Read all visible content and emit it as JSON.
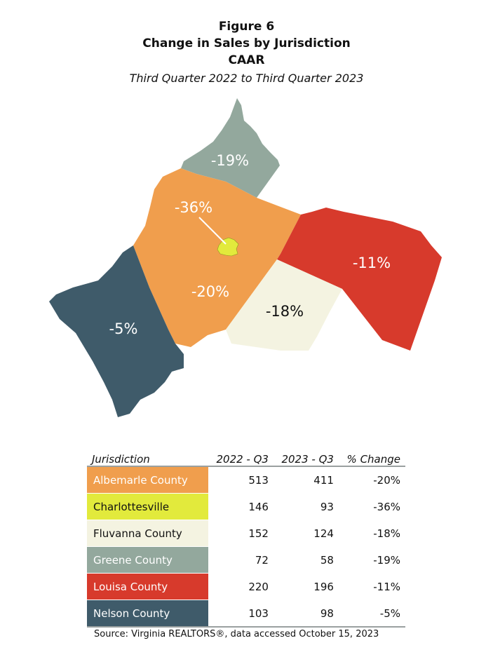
{
  "header": {
    "figure": "Figure 6",
    "title": "Change in Sales by Jurisdiction",
    "org": "CAAR",
    "subtitle": "Third Quarter 2022 to Third Quarter 2023"
  },
  "colors": {
    "albemarle": "#F09E4D",
    "charlottesville": "#E2EA3C",
    "fluvanna": "#F4F3E1",
    "greene": "#93A89D",
    "louisa": "#D73A2C",
    "nelson": "#3F5B6A"
  },
  "map": {
    "labels": {
      "greene": "-19%",
      "charlottesville": "-36%",
      "albemarle": "-20%",
      "louisa": "-11%",
      "fluvanna": "-18%",
      "nelson": "-5%"
    }
  },
  "table": {
    "headers": [
      "Jurisdiction",
      "2022 - Q3",
      "2023 - Q3",
      "% Change"
    ],
    "rows": [
      {
        "name": "Albemarle County",
        "q3_2022": "513",
        "q3_2023": "411",
        "change": "-20%",
        "color": "#F09E4D",
        "text_color": "#ffffff"
      },
      {
        "name": "Charlottesville",
        "q3_2022": "146",
        "q3_2023": "93",
        "change": "-36%",
        "color": "#E2EA3C",
        "text_color": "#111111"
      },
      {
        "name": "Fluvanna County",
        "q3_2022": "152",
        "q3_2023": "124",
        "change": "-18%",
        "color": "#F4F3E1",
        "text_color": "#111111"
      },
      {
        "name": "Greene County",
        "q3_2022": "72",
        "q3_2023": "58",
        "change": "-19%",
        "color": "#93A89D",
        "text_color": "#ffffff"
      },
      {
        "name": "Louisa County",
        "q3_2022": "220",
        "q3_2023": "196",
        "change": "-11%",
        "color": "#D73A2C",
        "text_color": "#ffffff"
      },
      {
        "name": "Nelson County",
        "q3_2022": "103",
        "q3_2023": "98",
        "change": "-5%",
        "color": "#3F5B6A",
        "text_color": "#ffffff"
      }
    ]
  },
  "source": "Source: Virginia REALTORS®, data accessed October 15, 2023"
}
